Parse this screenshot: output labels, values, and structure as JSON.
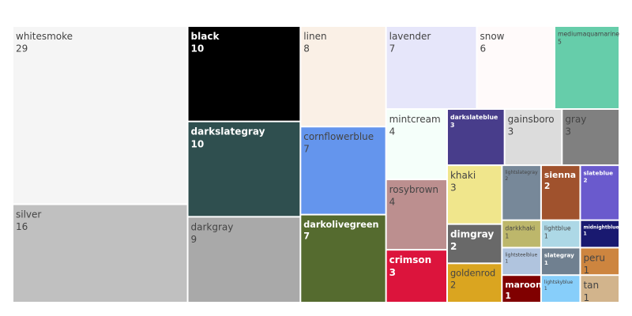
{
  "chart_data": {
    "type": "treemap",
    "items": [
      {
        "label": "whitesmoke",
        "value": 29,
        "color": "#f5f5f5",
        "text_color": "#444444",
        "bold": false
      },
      {
        "label": "silver",
        "value": 16,
        "color": "#c0c0c0",
        "text_color": "#444444",
        "bold": false
      },
      {
        "label": "black",
        "value": 10,
        "color": "#000000",
        "text_color": "#ffffff",
        "bold": true
      },
      {
        "label": "darkslategray",
        "value": 10,
        "color": "#2f4f4f",
        "text_color": "#ffffff",
        "bold": true
      },
      {
        "label": "darkgray",
        "value": 9,
        "color": "#a9a9a9",
        "text_color": "#444444",
        "bold": false
      },
      {
        "label": "linen",
        "value": 8,
        "color": "#faf0e6",
        "text_color": "#444444",
        "bold": false
      },
      {
        "label": "cornflowerblue",
        "value": 7,
        "color": "#6495ed",
        "text_color": "#444444",
        "bold": false
      },
      {
        "label": "darkolivegreen",
        "value": 7,
        "color": "#556b2f",
        "text_color": "#ffffff",
        "bold": true
      },
      {
        "label": "lavender",
        "value": 7,
        "color": "#e6e6fa",
        "text_color": "#444444",
        "bold": false
      },
      {
        "label": "snow",
        "value": 6,
        "color": "#fffafa",
        "text_color": "#444444",
        "bold": false
      },
      {
        "label": "mediumaquamarine",
        "value": 5,
        "color": "#66cdaa",
        "text_color": "#444444",
        "bold": false
      },
      {
        "label": "mintcream",
        "value": 4,
        "color": "#f5fffa",
        "text_color": "#444444",
        "bold": false
      },
      {
        "label": "rosybrown",
        "value": 4,
        "color": "#bc8f8f",
        "text_color": "#444444",
        "bold": false
      },
      {
        "label": "crimson",
        "value": 3,
        "color": "#dc143c",
        "text_color": "#ffffff",
        "bold": true
      },
      {
        "label": "darkslateblue",
        "value": 3,
        "color": "#483d8b",
        "text_color": "#ffffff",
        "bold": true
      },
      {
        "label": "gainsboro",
        "value": 3,
        "color": "#dcdcdc",
        "text_color": "#444444",
        "bold": false
      },
      {
        "label": "gray",
        "value": 3,
        "color": "#808080",
        "text_color": "#444444",
        "bold": false
      },
      {
        "label": "khaki",
        "value": 3,
        "color": "#f0e68c",
        "text_color": "#444444",
        "bold": false
      },
      {
        "label": "dimgray",
        "value": 2,
        "color": "#696969",
        "text_color": "#ffffff",
        "bold": true
      },
      {
        "label": "goldenrod",
        "value": 2,
        "color": "#daa520",
        "text_color": "#444444",
        "bold": false
      },
      {
        "label": "lightslategray",
        "value": 2,
        "color": "#778899",
        "text_color": "#444444",
        "bold": false
      },
      {
        "label": "sienna",
        "value": 2,
        "color": "#a0522d",
        "text_color": "#ffffff",
        "bold": true
      },
      {
        "label": "slateblue",
        "value": 2,
        "color": "#6a5acd",
        "text_color": "#ffffff",
        "bold": true
      },
      {
        "label": "darkkhaki",
        "value": 1,
        "color": "#bdb76b",
        "text_color": "#444444",
        "bold": false
      },
      {
        "label": "lightsteelblue",
        "value": 1,
        "color": "#b0c4de",
        "text_color": "#444444",
        "bold": false
      },
      {
        "label": "maroon",
        "value": 1,
        "color": "#800000",
        "text_color": "#ffffff",
        "bold": true
      },
      {
        "label": "lightblue",
        "value": 1,
        "color": "#add8e6",
        "text_color": "#444444",
        "bold": false
      },
      {
        "label": "midnightblue",
        "value": 1,
        "color": "#191970",
        "text_color": "#ffffff",
        "bold": true
      },
      {
        "label": "slategray",
        "value": 1,
        "color": "#708090",
        "text_color": "#ffffff",
        "bold": true
      },
      {
        "label": "lightskyblue",
        "value": 1,
        "color": "#87cefa",
        "text_color": "#444444",
        "bold": false
      },
      {
        "label": "peru",
        "value": 1,
        "color": "#cd853f",
        "text_color": "#444444",
        "bold": false
      },
      {
        "label": "tan",
        "value": 1,
        "color": "#d2b48c",
        "text_color": "#444444",
        "bold": false
      }
    ]
  }
}
